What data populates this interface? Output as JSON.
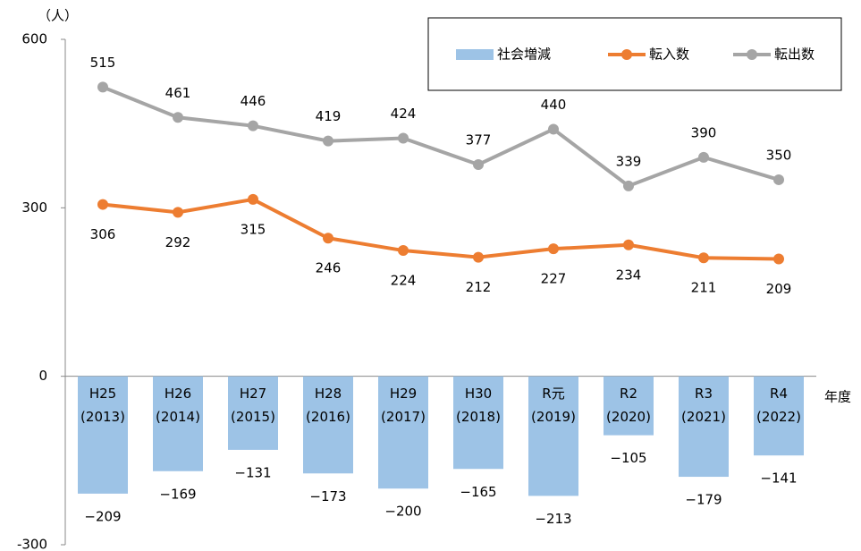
{
  "chart_data": {
    "type": "bar_line",
    "unit_label": "（人）",
    "x_label": "年度",
    "categories": [
      "H25\n(2013)",
      "H26\n(2014)",
      "H27\n(2015)",
      "H28\n(2016)",
      "H29\n(2017)",
      "H30\n(2018)",
      "R元\n(2019)",
      "R2\n(2020)",
      "R3\n(2021)",
      "R4\n(2022)"
    ],
    "series": [
      {
        "name": "社会増減",
        "type": "bar",
        "color": "#9dc3e6",
        "values": [
          -209,
          -169,
          -131,
          -173,
          -200,
          -165,
          -213,
          -105,
          -179,
          -141
        ],
        "value_labels": [
          "−209",
          "−169",
          "−131",
          "−173",
          "−200",
          "−165",
          "−213",
          "−105",
          "−179",
          "−141"
        ]
      },
      {
        "name": "転入数",
        "type": "line",
        "color": "#ed7d31",
        "values": [
          306,
          292,
          315,
          246,
          224,
          212,
          227,
          234,
          211,
          209
        ]
      },
      {
        "name": "転出数",
        "type": "line",
        "color": "#a5a5a5",
        "values": [
          515,
          461,
          446,
          419,
          424,
          377,
          440,
          339,
          390,
          350
        ]
      }
    ],
    "ylim": [
      -300,
      600
    ],
    "yticks": [
      -300,
      0,
      300,
      600
    ],
    "legend": "top-right"
  }
}
